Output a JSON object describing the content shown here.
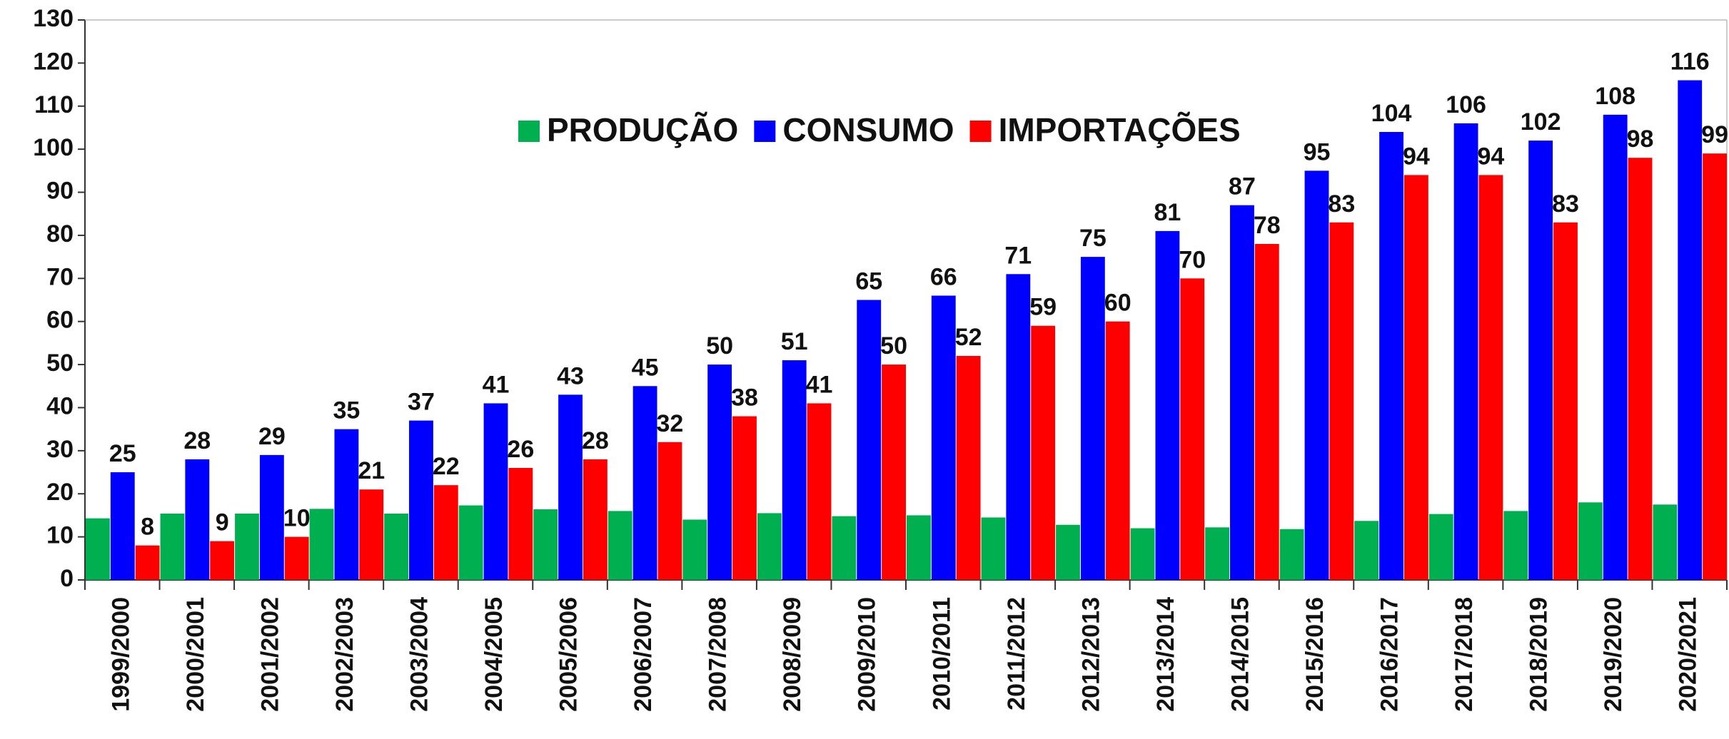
{
  "chart_data": {
    "type": "bar",
    "categories": [
      "1999/2000",
      "2000/2001",
      "2001/2002",
      "2002/2003",
      "2003/2004",
      "2004/2005",
      "2005/2006",
      "2006/2007",
      "2007/2008",
      "2008/2009",
      "2009/2010",
      "2010/2011",
      "2011/2012",
      "2012/2013",
      "2013/2014",
      "2014/2015",
      "2015/2016",
      "2016/2017",
      "2017/2018",
      "2018/2019",
      "2019/2020",
      "2020/2021"
    ],
    "series": [
      {
        "name": "PRODUÇÃO",
        "color": "#00b050",
        "values": [
          14.3,
          15.4,
          15.4,
          16.5,
          15.4,
          17.3,
          16.4,
          16,
          14,
          15.5,
          14.8,
          15,
          14.5,
          12.8,
          12,
          12.2,
          11.8,
          13.7,
          15.3,
          16,
          18,
          17.5
        ]
      },
      {
        "name": "CONSUMO",
        "color": "#0000ff",
        "values": [
          25,
          28,
          29,
          35,
          37,
          41,
          43,
          45,
          50,
          51,
          65,
          66,
          71,
          75,
          81,
          87,
          95,
          104,
          106,
          102,
          108,
          116
        ]
      },
      {
        "name": "IMPORTAÇÕES",
        "color": "#ff0000",
        "values": [
          8,
          9,
          10,
          21,
          22,
          26,
          28,
          32,
          38,
          41,
          50,
          52,
          59,
          60,
          70,
          78,
          83,
          94,
          94,
          83,
          98,
          99
        ]
      }
    ],
    "data_labels": [
      "CONSUMO",
      "IMPORTAÇÕES"
    ],
    "ylim": [
      0,
      130
    ],
    "yticks": [
      0,
      10,
      20,
      30,
      40,
      50,
      60,
      70,
      80,
      90,
      100,
      110,
      120,
      130
    ],
    "grid": false,
    "legend": "top"
  }
}
